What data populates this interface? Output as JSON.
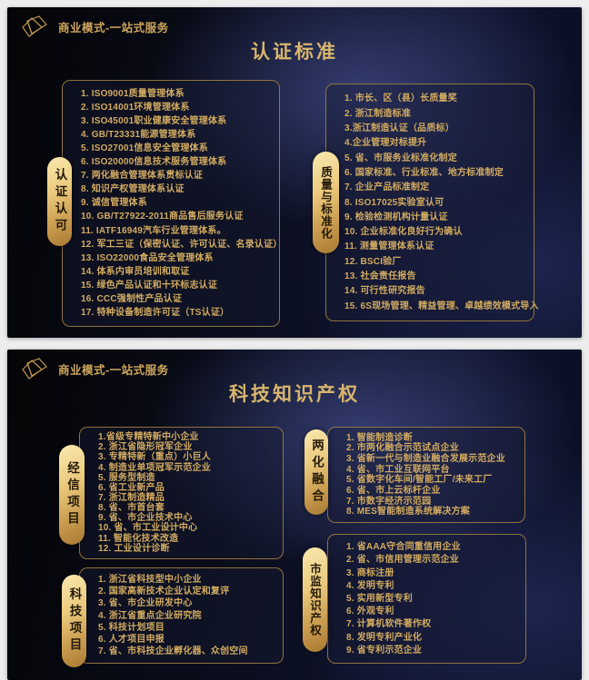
{
  "theme": {
    "page_bg": "#ededee",
    "gold_text": "#d2ab60",
    "title_gold": "#d8b66c",
    "pill_gradient_start": "#f9e9b0",
    "pill_gradient_end": "#a87a33",
    "panel_border": "#a88442",
    "slide_bg_dark": "#050507",
    "slide_bg_blue": "#39427a"
  },
  "brand": {
    "logo_icon": "origami-diamond-icon",
    "text": "商业模式-一站式服务"
  },
  "slides": [
    {
      "title": "认证标准",
      "panels": [
        {
          "label": "认证认可",
          "items": [
            "1. ISO9001质量管理体系",
            "2. ISO14001环境管理体系",
            "3. ISO45001职业健康安全管理体系",
            "4. GB/T23331能源管理体系",
            "5. ISO27001信息安全管理体系",
            "6. ISO20000信息技术服务管理体系",
            "7. 两化融合管理体系贯标认证",
            "8. 知识产权管理体系认证",
            "9. 诚信管理体系",
            "10. GB/T27922-2011商品售后服务认证",
            "11. IATF16949汽车行业管理体系。",
            "12. 军工三证（保密认证、许可认证、名录认证）",
            "13. ISO22000食品安全管理体系",
            "14. 体系内审员培训和取证",
            "15. 绿色产品认证和十环标志认证",
            "16. CCC强制性产品认证",
            "17. 特种设备制造许可证（TS认证）"
          ]
        },
        {
          "label": "质量与标准化",
          "items": [
            "1. 市长、区（县）长质量奖",
            "2. 浙江制造标准",
            "3.浙江制造认证（品质标）",
            "4.企业管理对标提升",
            "5. 省、市服务业标准化制定",
            "6. 国家标准、行业标准、地方标准制定",
            "7. 企业产品标准制定",
            "8. ISO17025实验室认可",
            "9. 检验检测机构计量认证",
            "10. 企业标准化良好行为确认",
            "11. 测量管理体系认证",
            "12. BSCI验厂",
            "13. 社会责任报告",
            "14. 可行性研究报告",
            "15. 6S现场管理、精益管理、卓越绩效模式导入"
          ]
        }
      ]
    },
    {
      "title": "科技知识产权",
      "panels": [
        {
          "label": "经信项目",
          "items": [
            "1.省级专精特新中小企业",
            "2. 浙江省隐形冠军企业",
            "3. 专精特新（重点）小巨人",
            "4. 制造业单项冠军示范企业",
            "5. 服务型制造",
            "6. 省工业新产品",
            "7. 浙江制造精品",
            "8. 省、市首台套",
            "9. 省、市企业技术中心",
            "10. 省、市工业设计中心",
            "11. 智能化技术改造",
            "12. 工业设计诊断"
          ]
        },
        {
          "label": "两化融合",
          "items": [
            "1. 智能制造诊断",
            "2. 市两化融合示范试点企业",
            "3. 省新一代与制造业融合发展示范企业",
            "4. 省、市工业互联网平台",
            "5. 省数字化车间/智能工厂/未来工厂",
            "6. 省、市上云标杆企业",
            "7. 市数字经济示范园",
            "8. MES智能制造系统解决方案"
          ]
        },
        {
          "label": "科技项目",
          "items": [
            "1. 浙江省科技型中小企业",
            "2. 国家高新技术企业认定和复评",
            "3. 省、市企业研发中心",
            "4. 浙江省重点企业研究院",
            "5. 科技计划项目",
            "6. 人才项目申报",
            "7. 省、市科技企业孵化器、众创空间"
          ]
        },
        {
          "label": "市监知识产权",
          "items": [
            "1. 省AAA守合同重信用企业",
            "2. 省、市信用管理示范企业",
            "3. 商标注册",
            "4. 发明专利",
            "5. 实用新型专利",
            "6. 外观专利",
            "7. 计算机软件著作权",
            "8. 发明专利产业化",
            "9. 省专利示范企业"
          ]
        }
      ]
    }
  ]
}
